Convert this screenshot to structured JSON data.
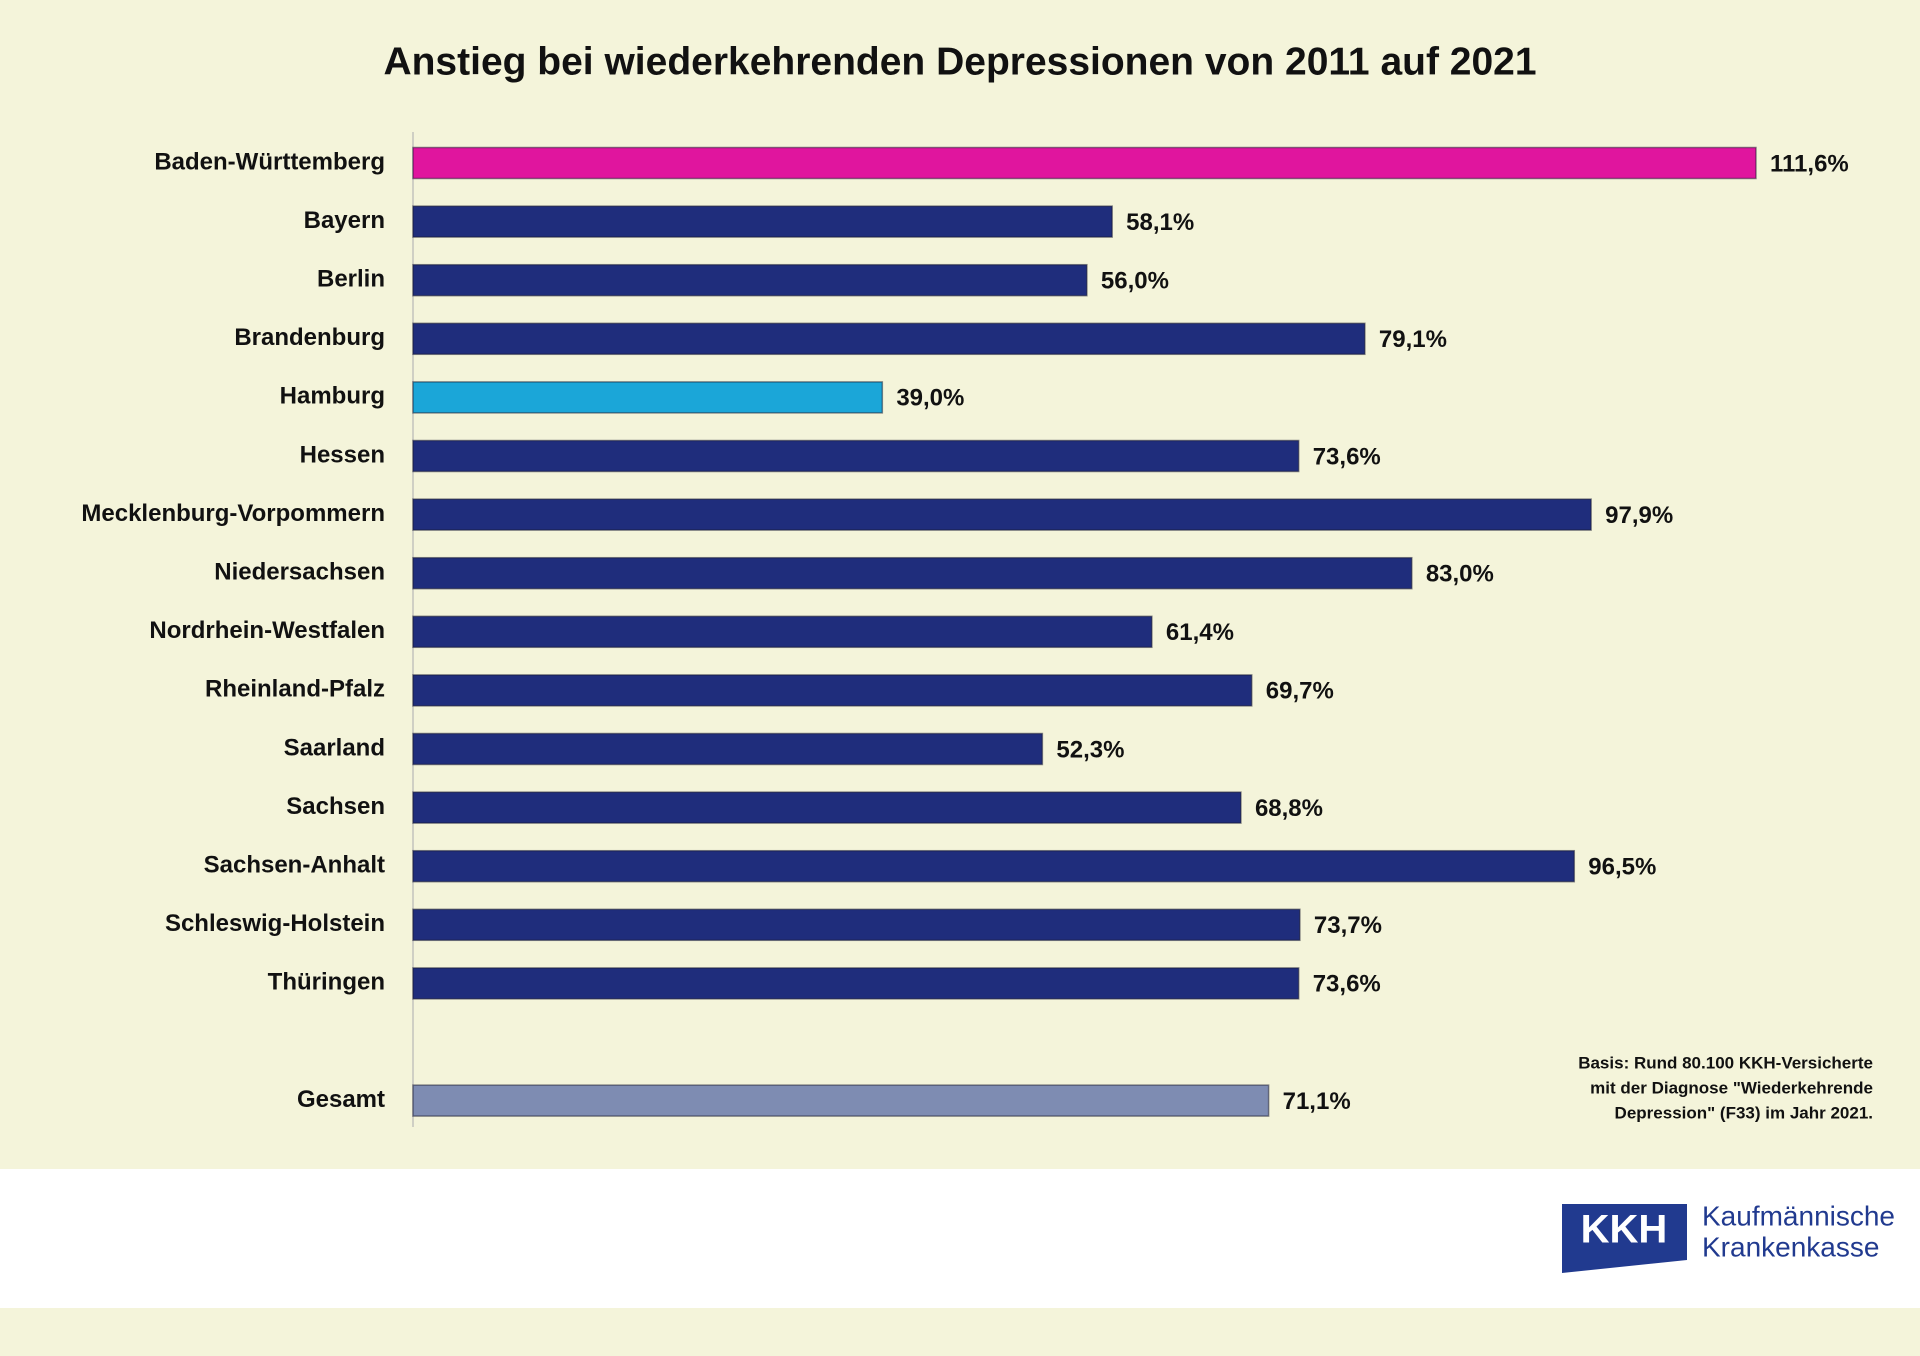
{
  "chart_data": {
    "type": "bar",
    "orientation": "horizontal",
    "title": "Anstieg bei wiederkehrenden Depressionen von 2011 auf 2021",
    "categories": [
      "Baden-Württemberg",
      "Bayern",
      "Berlin",
      "Brandenburg",
      "Hamburg",
      "Hessen",
      "Mecklenburg-Vorpommern",
      "Niedersachsen",
      "Nordrhein-Westfalen",
      "Rheinland-Pfalz",
      "Saarland",
      "Sachsen",
      "Sachsen-Anhalt",
      "Schleswig-Holstein",
      "Thüringen",
      null,
      "Gesamt"
    ],
    "values": [
      111.6,
      58.1,
      56.0,
      79.1,
      39.0,
      73.6,
      97.9,
      83.0,
      61.4,
      69.7,
      52.3,
      68.8,
      96.5,
      73.7,
      73.6,
      null,
      71.1
    ],
    "value_labels": [
      "111,6%",
      "58,1%",
      "56,0%",
      "79,1%",
      "39,0%",
      "73,6%",
      "97,9%",
      "83,0%",
      "61,4%",
      "69,7%",
      "52,3%",
      "68,8%",
      "96,5%",
      "73,7%",
      "73,6%",
      null,
      "71,1%"
    ],
    "colors": [
      "#e0159e",
      "#1f2d7c",
      "#1f2d7c",
      "#1f2d7c",
      "#1ba6d8",
      "#1f2d7c",
      "#1f2d7c",
      "#1f2d7c",
      "#1f2d7c",
      "#1f2d7c",
      "#1f2d7c",
      "#1f2d7c",
      "#1f2d7c",
      "#1f2d7c",
      "#1f2d7c",
      null,
      "#7e8cb2"
    ],
    "note": [
      "Basis: Rund 80.100 KKH-Versicherte",
      "mit der Diagnose \"Wiederkehrende",
      "Depression\" (F33) im Jahr 2021."
    ]
  },
  "logo": {
    "short": "KKH",
    "lines": [
      "Kaufmännische",
      "Krankenkasse"
    ]
  }
}
